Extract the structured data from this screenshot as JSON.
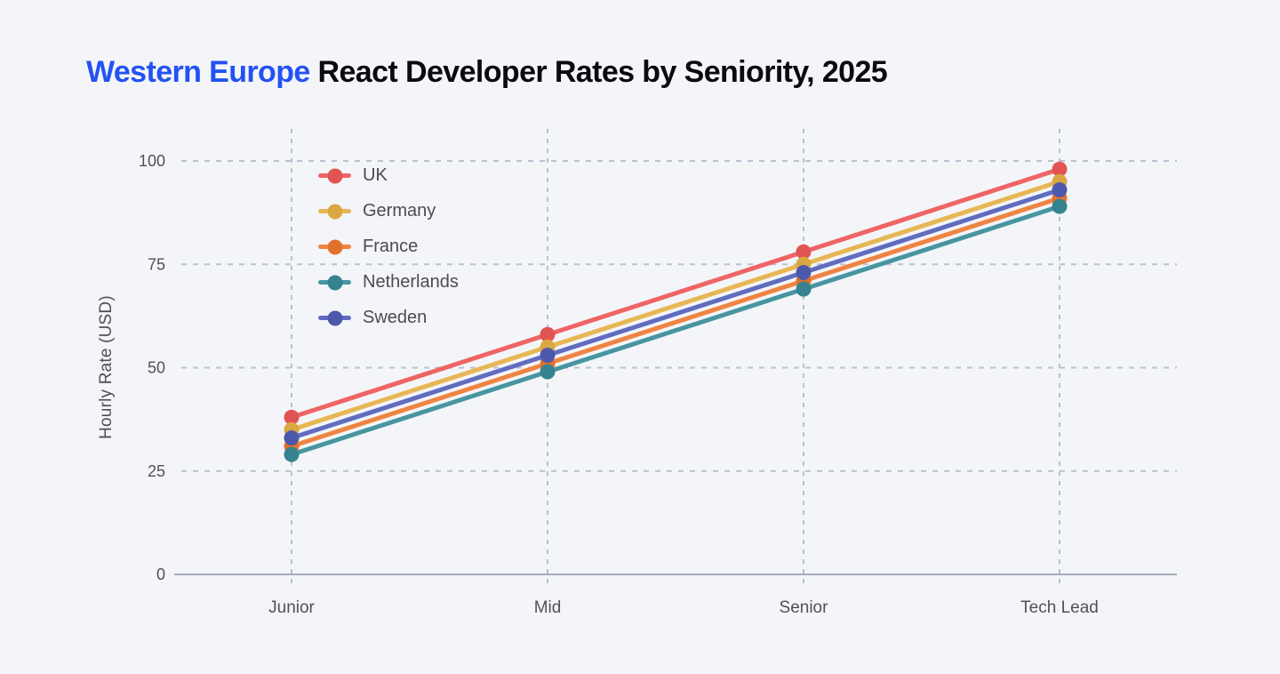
{
  "page": {
    "background": "#f4f5f9"
  },
  "title": {
    "highlight": "Western Europe",
    "rest": " React Developer Rates by Seniority, 2025",
    "highlight_color": "#2352f3",
    "text_color": "#0a0a0f"
  },
  "chart_data": {
    "type": "line",
    "title": "Western Europe React Developer Rates by Seniority, 2025",
    "categories": [
      "Junior",
      "Mid",
      "Senior",
      "Tech Lead"
    ],
    "series": [
      {
        "name": "UK",
        "color": "#ef6464",
        "dot_color": "#e25353",
        "values": [
          38,
          58,
          78,
          98
        ]
      },
      {
        "name": "Germany",
        "color": "#e7b754",
        "dot_color": "#daa843",
        "values": [
          35,
          55,
          75,
          95
        ]
      },
      {
        "name": "France",
        "color": "#ef8441",
        "dot_color": "#e2712d",
        "values": [
          31,
          51,
          71,
          91
        ]
      },
      {
        "name": "Netherlands",
        "color": "#4795a0",
        "dot_color": "#35838e",
        "values": [
          29,
          49,
          69,
          89
        ]
      },
      {
        "name": "Sweden",
        "color": "#5f6cc0",
        "dot_color": "#4c58ab",
        "values": [
          33,
          53,
          73,
          93
        ]
      }
    ],
    "xlabel": "",
    "ylabel": "Hourly Rate (USD)",
    "yticks": [
      0,
      25,
      50,
      75,
      100
    ],
    "ylim": [
      0,
      100
    ],
    "grid": true,
    "grid_style": "dashed",
    "grid_color": "#b9c1cf",
    "axis_color": "#a4abb9",
    "tick_label_color": "#50505c",
    "legend_position": "top-left-inside"
  }
}
